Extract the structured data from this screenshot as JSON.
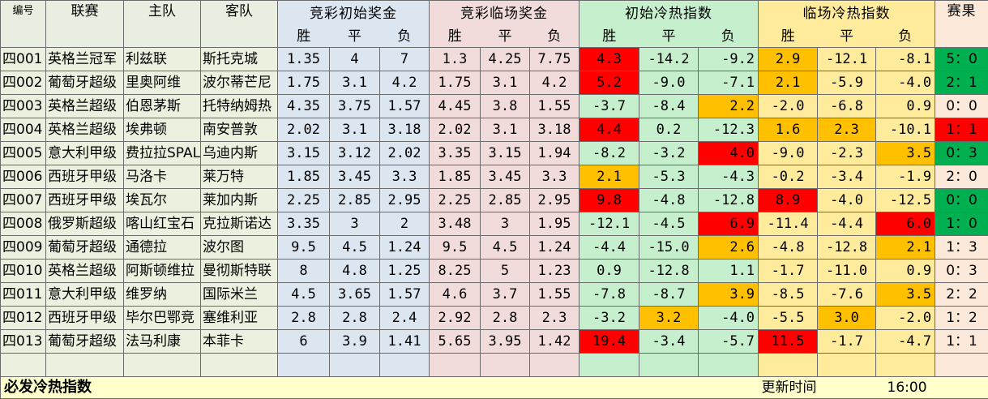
{
  "headers": {
    "id": "编号",
    "league": "联赛",
    "home": "主队",
    "away": "客队",
    "init_odds": "竞彩初始奖金",
    "live_odds": "竞彩临场奖金",
    "init_hot": "初始冷热指数",
    "live_hot": "临场冷热指数",
    "result": "赛果",
    "win": "胜",
    "draw": "平",
    "lose": "负"
  },
  "colors": {
    "highlight_red": "#ff0000",
    "highlight_orange": "#ffc000",
    "result_green": "#00b050",
    "result_red": "#ff0000"
  },
  "rows": [
    {
      "id": "四001",
      "league": "英格兰冠军",
      "home": "利兹联",
      "away": "斯托克城",
      "iw": "1.35",
      "id_": "4",
      "il": "7",
      "lw": "1.3",
      "ld": "4.25",
      "ll": "7.75",
      "hw": "4.3",
      "hd": "-14.2",
      "hl": "-9.2",
      "lhw": "2.9",
      "lhd": "-12.1",
      "lhl": "-8.1",
      "res": "5：0",
      "hi": {
        "hw": "red",
        "lhw": "orange"
      },
      "rescolor": "green"
    },
    {
      "id": "四002",
      "league": "葡萄牙超级",
      "home": "里奥阿维",
      "away": "波尔蒂芒尼",
      "iw": "1.75",
      "id_": "3.1",
      "il": "4.2",
      "lw": "1.75",
      "ld": "3.1",
      "ll": "4.2",
      "hw": "5.2",
      "hd": "-9.0",
      "hl": "-7.1",
      "lhw": "2.1",
      "lhd": "-5.9",
      "lhl": "-4.0",
      "res": "2：1",
      "hi": {
        "hw": "red",
        "lhw": "orange"
      },
      "rescolor": "green"
    },
    {
      "id": "四003",
      "league": "英格兰超级",
      "home": "伯恩茅斯",
      "away": "托特纳姆热",
      "iw": "4.35",
      "id_": "3.75",
      "il": "1.57",
      "lw": "4.45",
      "ld": "3.8",
      "ll": "1.55",
      "hw": "-3.7",
      "hd": "-8.4",
      "hl": "2.2",
      "lhw": "-2.0",
      "lhd": "-6.8",
      "lhl": "0.9",
      "res": "0：0",
      "hi": {
        "hl": "orange"
      },
      "rescolor": ""
    },
    {
      "id": "四004",
      "league": "英格兰超级",
      "home": "埃弗顿",
      "away": "南安普敦",
      "iw": "2.02",
      "id_": "3.1",
      "il": "3.18",
      "lw": "2.02",
      "ld": "3.1",
      "ll": "3.18",
      "hw": "4.4",
      "hd": "0.2",
      "hl": "-12.3",
      "lhw": "1.6",
      "lhd": "2.3",
      "lhl": "-10.1",
      "res": "1：1",
      "hi": {
        "hw": "red",
        "lhw": "orange",
        "lhd": "orange"
      },
      "rescolor": "red"
    },
    {
      "id": "四005",
      "league": "意大利甲级",
      "home": "费拉拉SPAL",
      "away": "乌迪内斯",
      "iw": "3.15",
      "id_": "3.12",
      "il": "2.02",
      "lw": "3.35",
      "ld": "3.15",
      "ll": "1.94",
      "hw": "-8.2",
      "hd": "-3.2",
      "hl": "4.0",
      "lhw": "-9.0",
      "lhd": "-2.3",
      "lhl": "3.5",
      "res": "0：3",
      "hi": {
        "hl": "red",
        "lhl": "orange"
      },
      "rescolor": "green"
    },
    {
      "id": "四006",
      "league": "西班牙甲级",
      "home": "马洛卡",
      "away": "莱万特",
      "iw": "1.85",
      "id_": "3.45",
      "il": "3.3",
      "lw": "1.85",
      "ld": "3.45",
      "ll": "3.3",
      "hw": "2.1",
      "hd": "-5.3",
      "hl": "-4.3",
      "lhw": "-0.2",
      "lhd": "-3.4",
      "lhl": "-1.9",
      "res": "2：0",
      "hi": {
        "hw": "orange"
      },
      "rescolor": ""
    },
    {
      "id": "四007",
      "league": "西班牙甲级",
      "home": "埃瓦尔",
      "away": "莱加内斯",
      "iw": "2.25",
      "id_": "2.85",
      "il": "2.95",
      "lw": "2.25",
      "ld": "2.85",
      "ll": "2.95",
      "hw": "9.8",
      "hd": "-4.8",
      "hl": "-12.8",
      "lhw": "8.9",
      "lhd": "-4.0",
      "lhl": "-12.5",
      "res": "0：0",
      "hi": {
        "hw": "red",
        "lhw": "red"
      },
      "rescolor": "green"
    },
    {
      "id": "四008",
      "league": "俄罗斯超级",
      "home": "喀山红宝石",
      "away": "克拉斯诺达",
      "iw": "3.35",
      "id_": "3",
      "il": "2",
      "lw": "3.48",
      "ld": "3",
      "ll": "1.95",
      "hw": "-12.1",
      "hd": "-4.5",
      "hl": "6.9",
      "lhw": "-11.4",
      "lhd": "-4.4",
      "lhl": "6.0",
      "res": "1：0",
      "hi": {
        "hl": "red",
        "lhl": "red"
      },
      "rescolor": "green"
    },
    {
      "id": "四009",
      "league": "葡萄牙超级",
      "home": "通德拉",
      "away": "波尔图",
      "iw": "9.5",
      "id_": "4.5",
      "il": "1.24",
      "lw": "9.5",
      "ld": "4.5",
      "ll": "1.24",
      "hw": "-4.4",
      "hd": "-15.0",
      "hl": "2.6",
      "lhw": "-4.8",
      "lhd": "-12.8",
      "lhl": "2.1",
      "res": "1：3",
      "hi": {
        "hl": "orange",
        "lhl": "orange"
      },
      "rescolor": ""
    },
    {
      "id": "四010",
      "league": "英格兰超级",
      "home": "阿斯顿维拉",
      "away": "曼彻斯特联",
      "iw": "8",
      "id_": "4.8",
      "il": "1.25",
      "lw": "8.25",
      "ld": "5",
      "ll": "1.23",
      "hw": "0.9",
      "hd": "-12.8",
      "hl": "1.1",
      "lhw": "-1.7",
      "lhd": "-11.0",
      "lhl": "0.9",
      "res": "0：3",
      "hi": {},
      "rescolor": ""
    },
    {
      "id": "四011",
      "league": "意大利甲级",
      "home": "维罗纳",
      "away": "国际米兰",
      "iw": "4.5",
      "id_": "3.65",
      "il": "1.57",
      "lw": "4.6",
      "ld": "3.7",
      "ll": "1.55",
      "hw": "-7.8",
      "hd": "-8.7",
      "hl": "3.9",
      "lhw": "-8.5",
      "lhd": "-7.6",
      "lhl": "3.5",
      "res": "2：2",
      "hi": {
        "hl": "orange",
        "lhl": "orange"
      },
      "rescolor": ""
    },
    {
      "id": "四012",
      "league": "西班牙甲级",
      "home": "毕尔巴鄂竞",
      "away": "塞维利亚",
      "iw": "2.8",
      "id_": "2.8",
      "il": "2.4",
      "lw": "2.92",
      "ld": "2.8",
      "ll": "2.3",
      "hw": "-3.2",
      "hd": "3.2",
      "hl": "-4.0",
      "lhw": "-5.5",
      "lhd": "3.0",
      "lhl": "-2.0",
      "res": "1：2",
      "hi": {
        "hd": "orange",
        "lhd": "orange"
      },
      "rescolor": ""
    },
    {
      "id": "四013",
      "league": "葡萄牙超级",
      "home": "法马利康",
      "away": "本菲卡",
      "iw": "6",
      "id_": "3.9",
      "il": "1.41",
      "lw": "5.65",
      "ld": "3.95",
      "ll": "1.42",
      "hw": "19.4",
      "hd": "-3.4",
      "hl": "-5.7",
      "lhw": "11.5",
      "lhd": "-1.7",
      "lhl": "-4.7",
      "res": "1：1",
      "hi": {
        "hw": "red",
        "lhw": "red"
      },
      "rescolor": ""
    }
  ],
  "footer": {
    "label": "必发冷热指数",
    "update_label": "更新时间",
    "update_time": "16:00"
  }
}
